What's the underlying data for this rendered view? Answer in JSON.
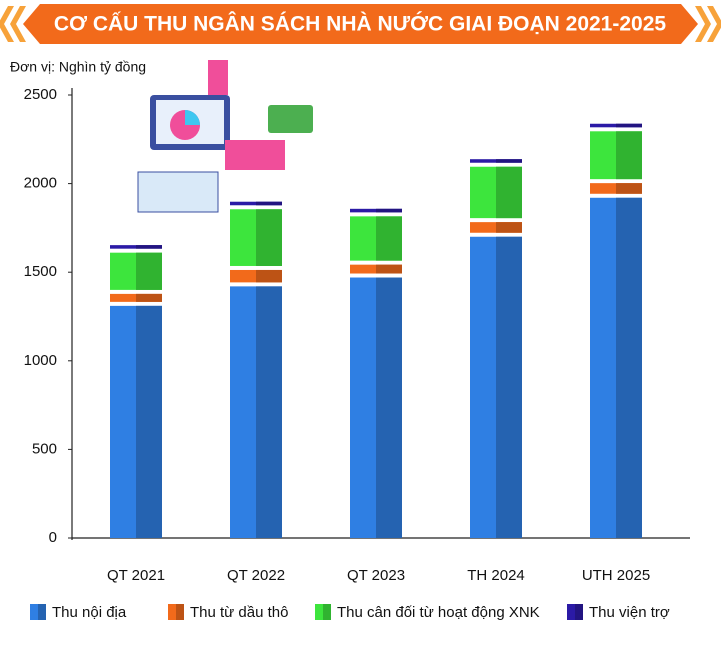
{
  "chart_data": {
    "type": "stacked_bar",
    "title": "CƠ CẤU THU NGÂN SÁCH NHÀ NƯỚC GIAI ĐOẠN 2021-2025",
    "y_axis_label": "Đơn vị: Nghìn tỷ đồng",
    "categories": [
      "QT 2021",
      "QT 2022",
      "QT 2023",
      "TH 2024",
      "UTH 2025"
    ],
    "series": [
      {
        "name": "Thu nội địa",
        "color": "#2f7fe3",
        "values": [
          1310,
          1420,
          1470,
          1700,
          1920
        ]
      },
      {
        "name": "Thu từ dầu thô",
        "color": "#f26a1b",
        "values": [
          45,
          70,
          50,
          60,
          60
        ]
      },
      {
        "name": "Thu cân đối từ hoạt động XNK",
        "color": "#3de53d",
        "values": [
          210,
          320,
          250,
          290,
          270
        ]
      },
      {
        "name": "Thu viện trợ",
        "color": "#2b1aa6",
        "values": [
          20,
          20,
          20,
          20,
          20
        ]
      }
    ],
    "ylim": [
      0,
      2500
    ],
    "yticks": [
      0,
      500,
      1000,
      1500,
      2000,
      2500
    ]
  }
}
